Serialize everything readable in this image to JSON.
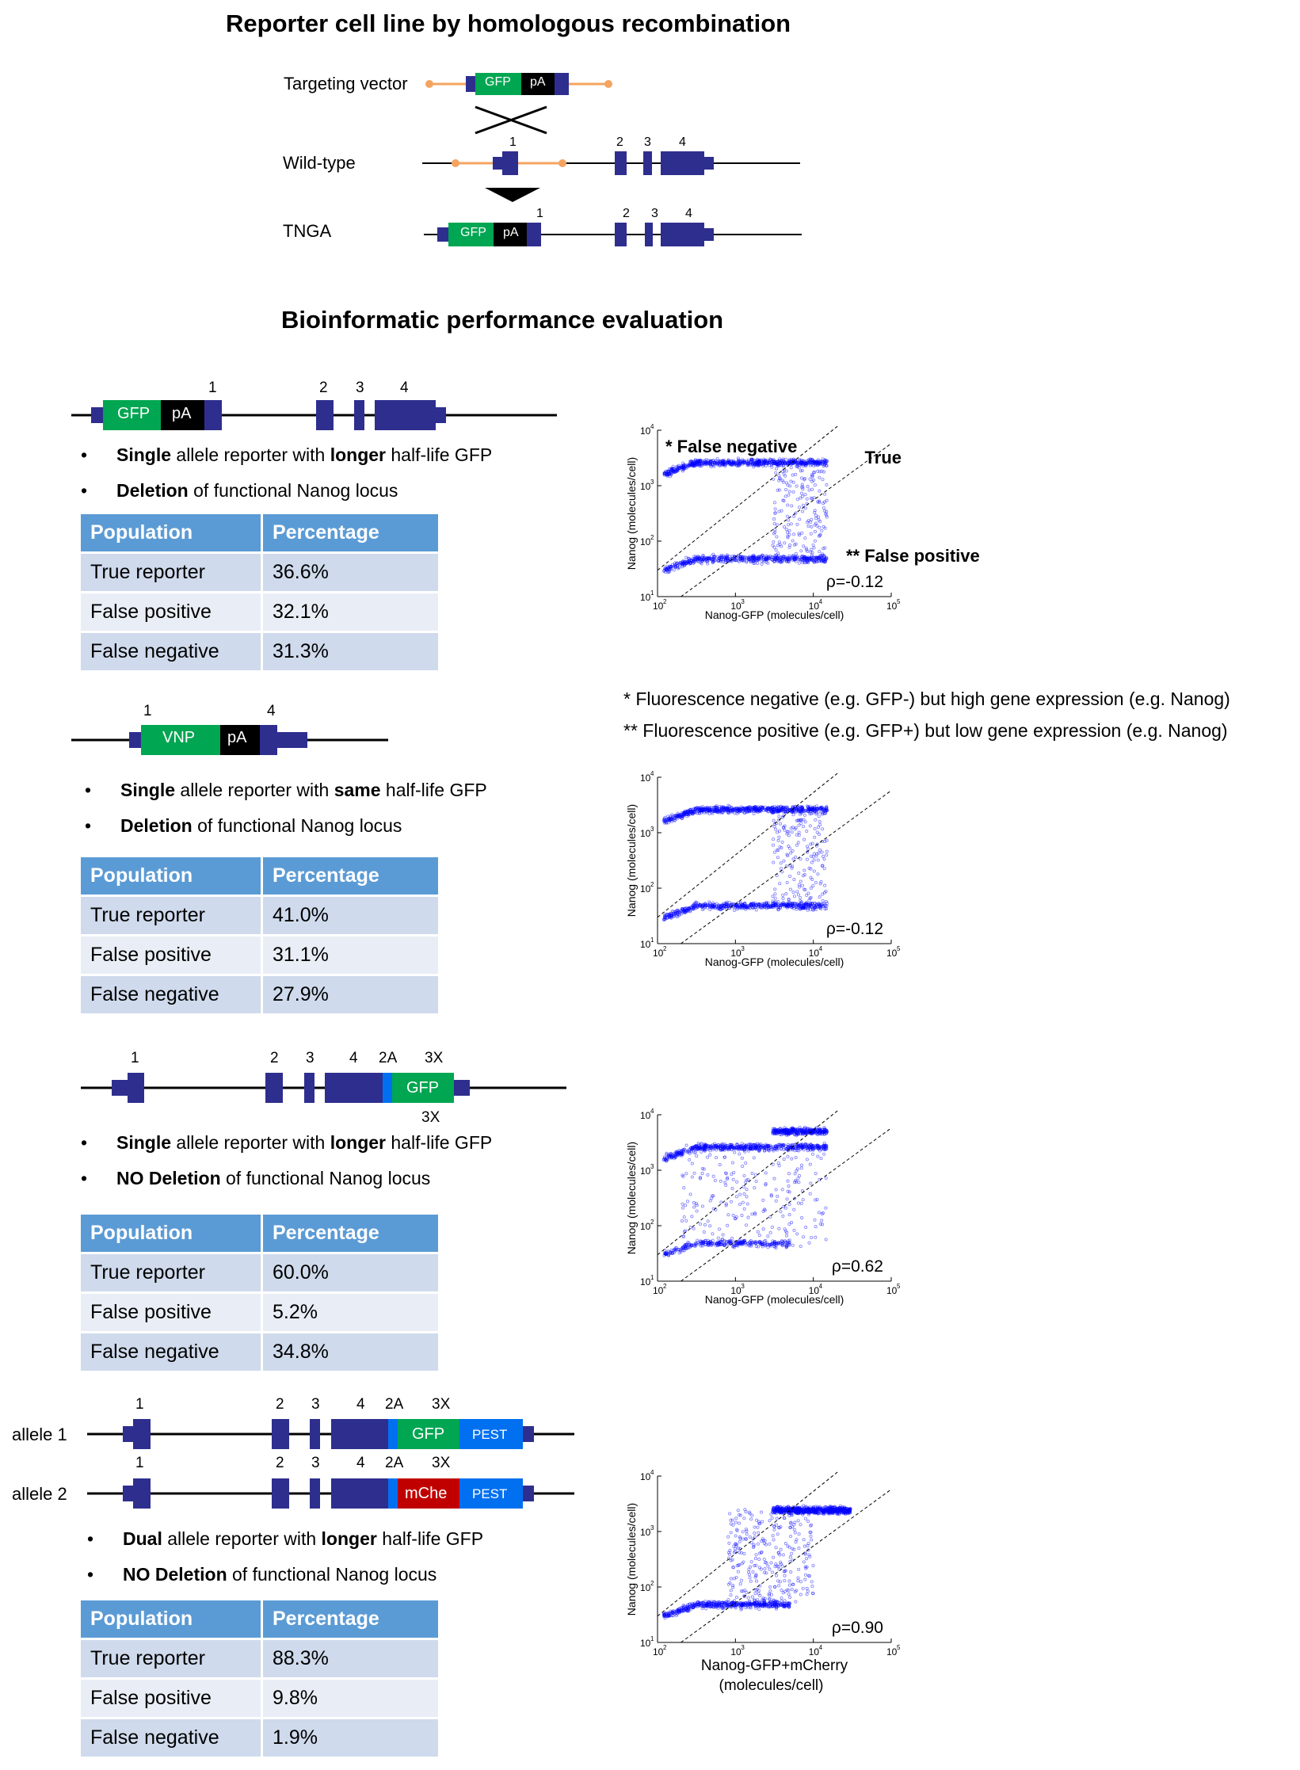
{
  "titles": {
    "top": "Reporter cell line by homologous recombination",
    "middle": "Bioinformatic performance evaluation"
  },
  "top_diagram": {
    "targeting_vector": "Targeting vector",
    "wild_type": "Wild-type",
    "tnga": "TNGA",
    "gfp": "GFP",
    "pa": "pA",
    "exon1": "1",
    "exon2": "2",
    "exon3": "3",
    "exon4": "4"
  },
  "constructs": [
    {
      "labels": {
        "gfp": "GFP",
        "pa": "pA",
        "e1": "1",
        "e2": "2",
        "e3": "3",
        "e4": "4"
      },
      "bullets": [
        {
          "bold": "Single",
          "mid": " allele reporter with ",
          "bold2": "longer",
          "tail": " half-life GFP"
        },
        {
          "bold": "Deletion",
          "tail": " of functional Nanog locus"
        }
      ],
      "table": {
        "headers": [
          "Population",
          "Percentage"
        ],
        "rows": [
          [
            "True reporter",
            "36.6%"
          ],
          [
            "False positive",
            "32.1%"
          ],
          [
            "False negative",
            "31.3%"
          ]
        ]
      }
    },
    {
      "labels": {
        "vnp": "VNP",
        "pa": "pA",
        "e1": "1",
        "e4": "4"
      },
      "bullets": [
        {
          "bold": "Single",
          "mid": " allele reporter with ",
          "bold2": "same",
          "tail": " half-life GFP"
        },
        {
          "bold": "Deletion",
          "tail": " of functional Nanog locus"
        }
      ],
      "table": {
        "headers": [
          "Population",
          "Percentage"
        ],
        "rows": [
          [
            "True reporter",
            "41.0%"
          ],
          [
            "False positive",
            "31.1%"
          ],
          [
            "False negative",
            "27.9%"
          ]
        ]
      }
    },
    {
      "labels": {
        "e1": "1",
        "e2": "2",
        "e3": "3",
        "e4": "4",
        "t2a": "2A",
        "t3x": "3X",
        "gfp": "GFP",
        "b3x": "3X"
      },
      "bullets": [
        {
          "bold": "Single",
          "mid": " allele reporter with ",
          "bold2": "longer",
          "tail": " half-life GFP"
        },
        {
          "bold": "NO Deletion",
          "tail": " of functional Nanog locus"
        }
      ],
      "table": {
        "headers": [
          "Population",
          "Percentage"
        ],
        "rows": [
          [
            "True reporter",
            "60.0%"
          ],
          [
            "False positive",
            "5.2%"
          ],
          [
            "False negative",
            "34.8%"
          ]
        ]
      }
    },
    {
      "labels": {
        "allele1": "allele 1",
        "allele2": "allele 2",
        "e1": "1",
        "e2": "2",
        "e3": "3",
        "e4": "4",
        "t2a": "2A",
        "t3x": "3X",
        "gfp": "GFP",
        "mche": "mChe",
        "pest": "PEST"
      },
      "bullets": [
        {
          "bold": "Dual",
          "mid": " allele reporter with ",
          "bold2": "longer",
          "tail": " half-life GFP"
        },
        {
          "bold": "NO Deletion",
          "tail": " of functional Nanog locus"
        }
      ],
      "table": {
        "headers": [
          "Population",
          "Percentage"
        ],
        "rows": [
          [
            "True reporter",
            "88.3%"
          ],
          [
            "False positive",
            "9.8%"
          ],
          [
            "False negative",
            "1.9%"
          ]
        ]
      }
    }
  ],
  "footnotes": [
    "* Fluorescence negative (e.g. GFP-) but high gene expression (e.g. Nanog)",
    "** Fluorescence positive (e.g. GFP+) but low gene expression (e.g. Nanog)"
  ],
  "colors": {
    "exon": "#2e2e8f",
    "gfp": "#00a651",
    "pa": "#000000",
    "vector_arm": "#f4a460",
    "mcherry": "#c00000",
    "pest": "#0070f0",
    "t2a": "#0070f0",
    "header": "#5b9bd5",
    "points": "#0000ff"
  },
  "chart_data": [
    {
      "type": "scatter",
      "xlabel": "Nanog-GFP (molecules/cell)",
      "ylabel": "Nanog (molecules/cell)",
      "x_scale": "log",
      "y_scale": "log",
      "xlim": [
        100,
        100000
      ],
      "ylim": [
        10,
        10000
      ],
      "x_ticks": [
        "10",
        "10",
        "10",
        "10"
      ],
      "x_tick_exps": [
        "2",
        "3",
        "4",
        "5"
      ],
      "y_ticks": [
        "10",
        "10",
        "10",
        "10"
      ],
      "y_tick_exps": [
        "1",
        "2",
        "3",
        "4"
      ],
      "annotations": {
        "fn": "* False negative",
        "true": "True",
        "fp": "** False positive"
      },
      "rho": "ρ=-0.12",
      "clusters": [
        {
          "x_range": [
            120,
            15000
          ],
          "y": 2700,
          "count": 700
        },
        {
          "x_range": [
            120,
            15000
          ],
          "y": 50,
          "count": 550
        },
        {
          "x_range": [
            3000,
            15000
          ],
          "y_range": [
            40,
            3000
          ],
          "count": 200
        }
      ]
    },
    {
      "type": "scatter",
      "xlabel": "Nanog-GFP (molecules/cell)",
      "ylabel": "Nanog (molecules/cell)",
      "x_scale": "log",
      "y_scale": "log",
      "xlim": [
        100,
        100000
      ],
      "ylim": [
        10,
        10000
      ],
      "x_ticks": [
        "10",
        "10",
        "10",
        "10"
      ],
      "x_tick_exps": [
        "2",
        "3",
        "4",
        "5"
      ],
      "y_ticks": [
        "10",
        "10",
        "10",
        "10"
      ],
      "y_tick_exps": [
        "1",
        "2",
        "3",
        "4"
      ],
      "rho": "ρ=-0.12",
      "clusters": [
        {
          "x_range": [
            120,
            15000
          ],
          "y": 2700,
          "count": 700
        },
        {
          "x_range": [
            120,
            15000
          ],
          "y": 50,
          "count": 550
        },
        {
          "x_range": [
            3000,
            15000
          ],
          "y_range": [
            40,
            3000
          ],
          "count": 200
        }
      ]
    },
    {
      "type": "scatter",
      "xlabel": "Nanog-GFP (molecules/cell)",
      "ylabel": "Nanog (molecules/cell)",
      "x_scale": "log",
      "y_scale": "log",
      "xlim": [
        100,
        100000
      ],
      "ylim": [
        10,
        10000
      ],
      "x_ticks": [
        "10",
        "10",
        "10",
        "10"
      ],
      "x_tick_exps": [
        "2",
        "3",
        "4",
        "5"
      ],
      "y_ticks": [
        "10",
        "10",
        "10",
        "10"
      ],
      "y_tick_exps": [
        "1",
        "2",
        "3",
        "4"
      ],
      "rho": "ρ=0.62",
      "clusters": [
        {
          "x_range": [
            120,
            15000
          ],
          "y": 2700,
          "count": 600
        },
        {
          "x_range": [
            3000,
            15000
          ],
          "y": 5200,
          "count": 350
        },
        {
          "x_range": [
            120,
            5000
          ],
          "y": 50,
          "count": 300
        },
        {
          "x_range": [
            200,
            15000
          ],
          "y_range": [
            40,
            3000
          ],
          "count": 250
        }
      ]
    },
    {
      "type": "scatter",
      "xlabel": "Nanog-GFP+mCherry",
      "xlabel2": "(molecules/cell)",
      "ylabel": "Nanog (molecules/cell)",
      "x_scale": "log",
      "y_scale": "log",
      "xlim": [
        100,
        100000
      ],
      "ylim": [
        10,
        10000
      ],
      "x_ticks": [
        "10",
        "10",
        "10",
        "10"
      ],
      "x_tick_exps": [
        "2",
        "3",
        "4",
        "5"
      ],
      "y_ticks": [
        "10",
        "10",
        "10",
        "10"
      ],
      "y_tick_exps": [
        "1",
        "2",
        "3",
        "4"
      ],
      "rho": "ρ=0.90",
      "clusters": [
        {
          "x_range": [
            120,
            5000
          ],
          "y": 50,
          "count": 500
        },
        {
          "x_range": [
            3000,
            30000
          ],
          "y": 2500,
          "count": 700
        },
        {
          "x_range": [
            800,
            10000
          ],
          "y_range": [
            50,
            2500
          ],
          "count": 300
        }
      ]
    }
  ]
}
